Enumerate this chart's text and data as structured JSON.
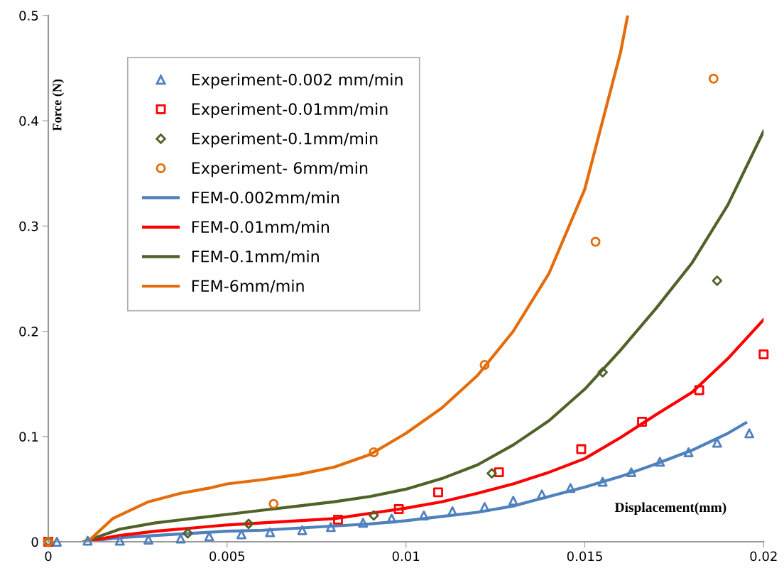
{
  "chart_data": {
    "type": "line",
    "xlabel": "Displacement(mm)",
    "ylabel": "Force (N)",
    "xlim": [
      0,
      0.02
    ],
    "ylim": [
      0,
      0.5
    ],
    "xticks": [
      0,
      0.005,
      0.01,
      0.015,
      0.02
    ],
    "yticks": [
      0,
      0.1,
      0.2,
      0.3,
      0.4,
      0.5
    ],
    "grid": false,
    "legend": "top left",
    "series": [
      {
        "name": "Experiment-0.002 mm/min",
        "type": "scatter",
        "marker": "triangle",
        "color": "#4f81bd",
        "x": [
          0.00024,
          0.0011,
          0.002,
          0.0028,
          0.0037,
          0.0045,
          0.0054,
          0.0062,
          0.0071,
          0.0079,
          0.0088,
          0.0096,
          0.0105,
          0.0113,
          0.0122,
          0.013,
          0.0138,
          0.0146,
          0.0155,
          0.0163,
          0.0171,
          0.0179,
          0.0187,
          0.0196
        ],
        "values": [
          0,
          0.001,
          0.001,
          0.002,
          0.003,
          0.005,
          0.007,
          0.009,
          0.011,
          0.014,
          0.018,
          0.022,
          0.025,
          0.029,
          0.033,
          0.039,
          0.045,
          0.051,
          0.057,
          0.066,
          0.076,
          0.085,
          0.094,
          0.103
        ]
      },
      {
        "name": "Experiment-0.01mm/min",
        "type": "scatter",
        "marker": "square",
        "color": "#ff0000",
        "x": [
          0,
          0.0081,
          0.0098,
          0.0109,
          0.0126,
          0.0149,
          0.0166,
          0.0182,
          0.02
        ],
        "values": [
          0,
          0.021,
          0.031,
          0.047,
          0.066,
          0.088,
          0.114,
          0.144,
          0.178
        ]
      },
      {
        "name": "Experiment-0.1mm/min",
        "type": "scatter",
        "marker": "diamond",
        "color": "#4f6228",
        "x": [
          0,
          0.0039,
          0.0056,
          0.0091,
          0.0124,
          0.0155,
          0.0187
        ],
        "values": [
          0,
          0.008,
          0.017,
          0.025,
          0.065,
          0.161,
          0.248
        ]
      },
      {
        "name": "Experiment- 6mm/min",
        "type": "scatter",
        "marker": "circle",
        "color": "#e46c0a",
        "x": [
          0,
          0.0063,
          0.0091,
          0.0122,
          0.0153,
          0.0186
        ],
        "values": [
          0,
          0.036,
          0.085,
          0.168,
          0.285,
          0.44
        ]
      },
      {
        "name": "FEM-0.002mm/min",
        "marker": "none",
        "color": "#4f81bd",
        "x": [
          0.001,
          0.002,
          0.003,
          0.004,
          0.005,
          0.006,
          0.007,
          0.008,
          0.009,
          0.01,
          0.011,
          0.012,
          0.013,
          0.014,
          0.015,
          0.016,
          0.017,
          0.018,
          0.019,
          0.0195
        ],
        "values": [
          0,
          0.004,
          0.006,
          0.008,
          0.01,
          0.011,
          0.013,
          0.015,
          0.017,
          0.02,
          0.024,
          0.028,
          0.034,
          0.043,
          0.052,
          0.062,
          0.074,
          0.087,
          0.103,
          0.113
        ]
      },
      {
        "name": "FEM-0.01mm/min",
        "marker": "none",
        "color": "#ff0000",
        "x": [
          0.001,
          0.002,
          0.003,
          0.004,
          0.005,
          0.006,
          0.007,
          0.008,
          0.009,
          0.01,
          0.011,
          0.012,
          0.013,
          0.014,
          0.015,
          0.016,
          0.017,
          0.018,
          0.019,
          0.02
        ],
        "values": [
          0,
          0.006,
          0.01,
          0.013,
          0.016,
          0.018,
          0.02,
          0.022,
          0.027,
          0.032,
          0.038,
          0.046,
          0.055,
          0.066,
          0.079,
          0.099,
          0.121,
          0.142,
          0.174,
          0.211
        ]
      },
      {
        "name": "FEM-0.1mm/min",
        "marker": "none",
        "color": "#4f6228",
        "x": [
          0.001,
          0.002,
          0.003,
          0.004,
          0.005,
          0.006,
          0.007,
          0.008,
          0.009,
          0.01,
          0.011,
          0.012,
          0.013,
          0.014,
          0.015,
          0.016,
          0.017,
          0.018,
          0.019,
          0.02
        ],
        "values": [
          0,
          0.012,
          0.018,
          0.022,
          0.026,
          0.03,
          0.034,
          0.038,
          0.043,
          0.05,
          0.06,
          0.073,
          0.092,
          0.115,
          0.145,
          0.182,
          0.222,
          0.265,
          0.32,
          0.39
        ]
      },
      {
        "name": "FEM-6mm/min",
        "marker": "none",
        "color": "#e46c0a",
        "x": [
          0.0011,
          0.0018,
          0.0028,
          0.0037,
          0.0045,
          0.005,
          0.006,
          0.007,
          0.008,
          0.009,
          0.01,
          0.011,
          0.012,
          0.013,
          0.014,
          0.015,
          0.0155,
          0.016,
          0.0162
        ],
        "values": [
          0,
          0.022,
          0.038,
          0.046,
          0.051,
          0.055,
          0.059,
          0.064,
          0.071,
          0.083,
          0.103,
          0.127,
          0.158,
          0.2,
          0.255,
          0.335,
          0.4,
          0.465,
          0.5
        ]
      }
    ]
  }
}
